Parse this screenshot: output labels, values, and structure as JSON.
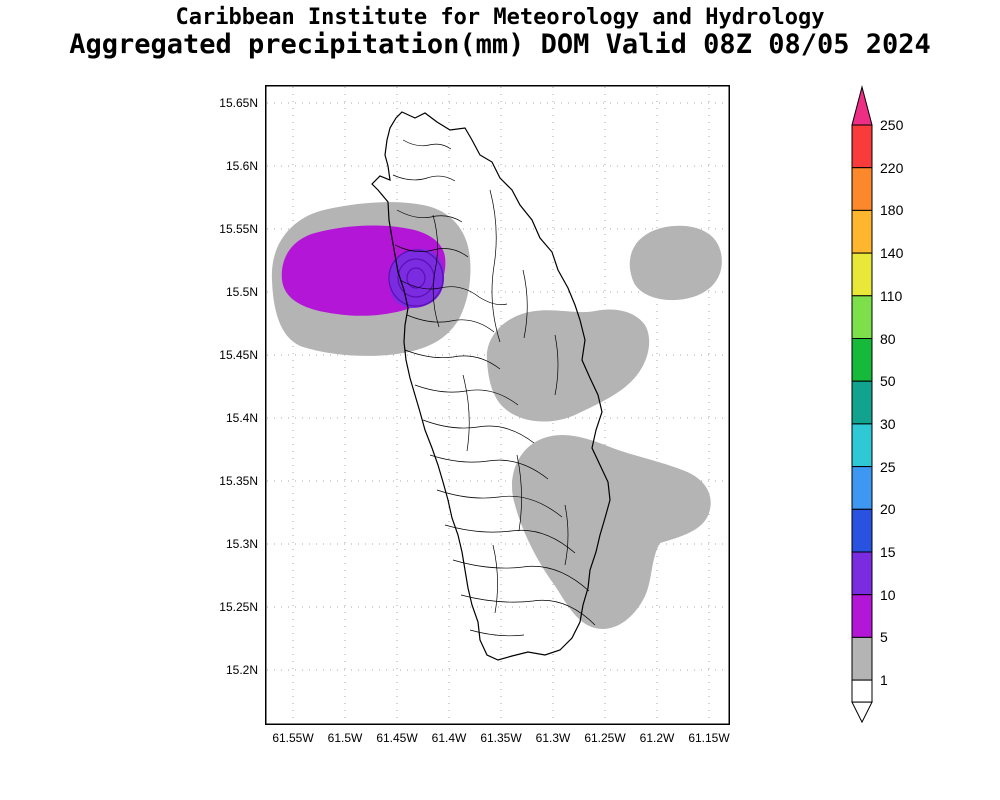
{
  "title": {
    "line1": "Caribbean Institute for Meteorology and Hydrology",
    "line2": "Aggregated precipitation(mm) DOM Valid 08Z 08/05 2024"
  },
  "map": {
    "y_ticks": [
      "15.65N",
      "15.6N",
      "15.55N",
      "15.5N",
      "15.45N",
      "15.4N",
      "15.35N",
      "15.3N",
      "15.25N",
      "15.2N"
    ],
    "x_ticks": [
      "61.55W",
      "61.5W",
      "61.45W",
      "61.4W",
      "61.35W",
      "61.3W",
      "61.25W",
      "61.2W",
      "61.15W"
    ]
  },
  "colorbar": {
    "boundary_labels": [
      "250",
      "220",
      "180",
      "140",
      "110",
      "80",
      "50",
      "30",
      "25",
      "20",
      "15",
      "10",
      "5",
      "1"
    ],
    "band_colors_top_to_bottom": [
      "#f93b3b",
      "#fb882a",
      "#fdb62e",
      "#e9e838",
      "#7de04a",
      "#17b93a",
      "#12a38f",
      "#2fc9d6",
      "#3e97f0",
      "#2a52e0",
      "#7b2be0",
      "#b316d6",
      "#b4b4b4"
    ],
    "top_arrow_color": "#ee2d85",
    "bottom_band_color": "#ffffff",
    "bottom_arrow_color": "#ffffff"
  },
  "chart_data": {
    "type": "heatmap",
    "title": "Aggregated precipitation(mm) DOM Valid 08Z 08/05 2024",
    "source": "Caribbean Institute for Meteorology and Hydrology",
    "region": "Dominica (DOM)",
    "valid_time": "08Z 08/05 2024",
    "lat_ticks": [
      "15.2N",
      "15.25N",
      "15.3N",
      "15.35N",
      "15.4N",
      "15.45N",
      "15.5N",
      "15.55N",
      "15.6N",
      "15.65N"
    ],
    "lon_ticks": [
      "61.55W",
      "61.5W",
      "61.45W",
      "61.4W",
      "61.35W",
      "61.3W",
      "61.25W",
      "61.2W",
      "61.15W"
    ],
    "levels_mm": [
      1,
      5,
      10,
      15,
      20,
      25,
      30,
      50,
      80,
      110,
      140,
      180,
      220,
      250
    ],
    "level_colors": [
      "#b4b4b4",
      "#b316d6",
      "#7b2be0",
      "#2a52e0",
      "#3e97f0",
      "#2fc9d6",
      "#12a38f",
      "#17b93a",
      "#7de04a",
      "#e9e838",
      "#fdb62e",
      "#fb882a",
      "#f93b3b",
      "#ee2d85"
    ],
    "shaded_areas": [
      {
        "range_mm": "1-5",
        "color": "#b4b4b4",
        "where": "west offshore band around 61.5W 15.45-15.56N wrapping the northwest coast"
      },
      {
        "range_mm": "1-5",
        "color": "#b4b4b4",
        "where": "northeast offshore near 61.2W 15.5-15.55N"
      },
      {
        "range_mm": "1-5",
        "color": "#b4b4b4",
        "where": "central/east island 61.35-61.25W 15.42-15.5N"
      },
      {
        "range_mm": "1-5",
        "color": "#b4b4b4",
        "where": "south/southeast 61.3-61.17W 15.25-15.38N"
      },
      {
        "range_mm": "5-10",
        "color": "#b316d6",
        "where": "west offshore blob centered near 61.51W 15.5N"
      },
      {
        "range_mm": "10-15",
        "color": "#7b2be0",
        "where": "small maximum on northwest coast near 61.45W 15.5N with nested contours"
      }
    ],
    "legend_position": "right vertical colorbar",
    "grid": "dotted graticule at each lat/lon tick"
  }
}
